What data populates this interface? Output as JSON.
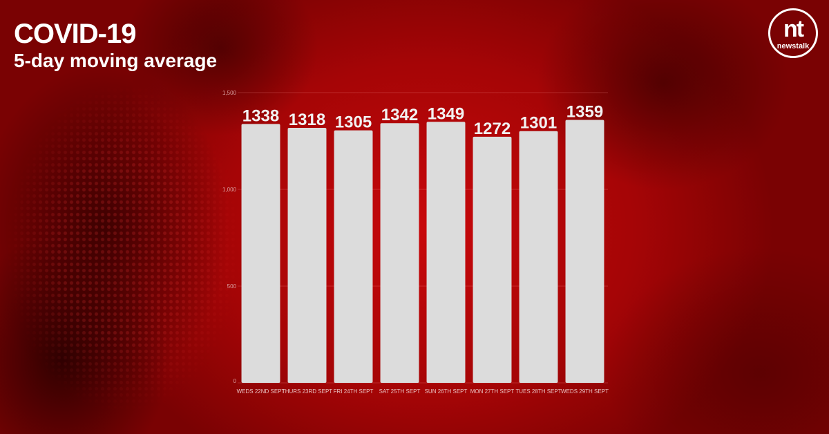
{
  "header": {
    "title": "COVID-19",
    "subtitle": "5-day moving average"
  },
  "brand": {
    "logo_mark": "nt",
    "logo_word": "newstalk"
  },
  "colors": {
    "background": "#a50506",
    "bar": "#dcdcdc",
    "text": "#ffffff"
  },
  "chart_data": {
    "type": "bar",
    "title": "COVID-19",
    "subtitle": "5-day moving average",
    "categories": [
      "WEDS 22ND SEPT",
      "THURS 23RD SEPT",
      "FRI 24TH SEPT",
      "SAT 25TH SEPT",
      "SUN 26TH SEPT",
      "MON 27TH SEPT",
      "TUES 28TH SEPT",
      "WEDS 29TH SEPT"
    ],
    "values": [
      1338,
      1318,
      1305,
      1342,
      1349,
      1272,
      1301,
      1359
    ],
    "yticks": [
      "0",
      "500",
      "1,000",
      "1,500"
    ],
    "ylim": [
      0,
      1500
    ],
    "grid": true,
    "legend": "none",
    "data_labels": true
  }
}
